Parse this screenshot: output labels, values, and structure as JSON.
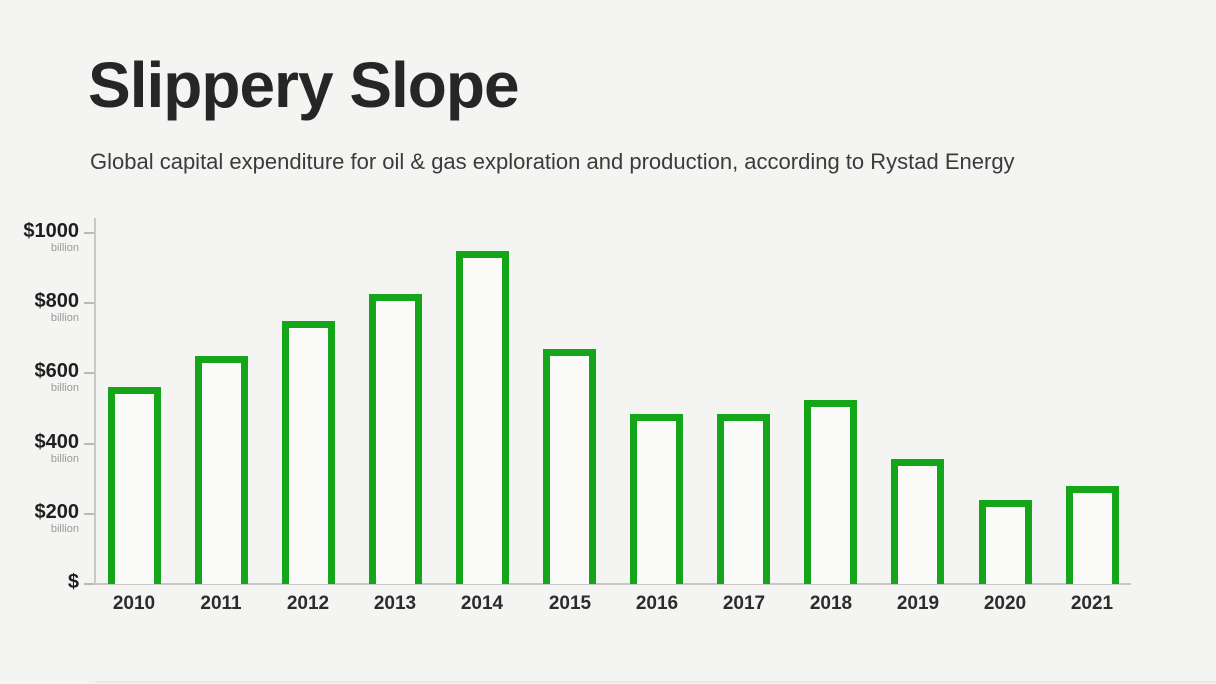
{
  "header": {
    "title": "Slippery Slope",
    "subtitle": "Global capital expenditure for oil & gas exploration and production, according to Rystad Energy"
  },
  "chart_data": {
    "type": "bar",
    "title": "Slippery Slope",
    "subtitle": "Global capital expenditure for oil & gas exploration and production, according to Rystad Energy",
    "unit": "USD billion",
    "source": "Rystad Energy",
    "categories": [
      "2010",
      "2011",
      "2012",
      "2013",
      "2014",
      "2015",
      "2016",
      "2017",
      "2018",
      "2019",
      "2020",
      "2021"
    ],
    "values": [
      560,
      650,
      750,
      825,
      950,
      670,
      485,
      485,
      525,
      355,
      240,
      280
    ],
    "xlabel": "",
    "ylabel": "$ billion",
    "ylim": [
      0,
      1000
    ],
    "yticks": [
      {
        "value": 1000,
        "label": "$1000",
        "sub": "billion"
      },
      {
        "value": 800,
        "label": "$800",
        "sub": "billion"
      },
      {
        "value": 600,
        "label": "$600",
        "sub": "billion"
      },
      {
        "value": 400,
        "label": "$400",
        "sub": "billion"
      },
      {
        "value": 200,
        "label": "$200",
        "sub": "billion"
      },
      {
        "value": 0,
        "label": "$",
        "sub": ""
      }
    ],
    "grid": false,
    "legend_position": "none",
    "bar_style": "outlined",
    "bar_outline_color": "#14a519",
    "bar_fill_color": "#fafaf8",
    "background_color": "#f4f4f2"
  }
}
